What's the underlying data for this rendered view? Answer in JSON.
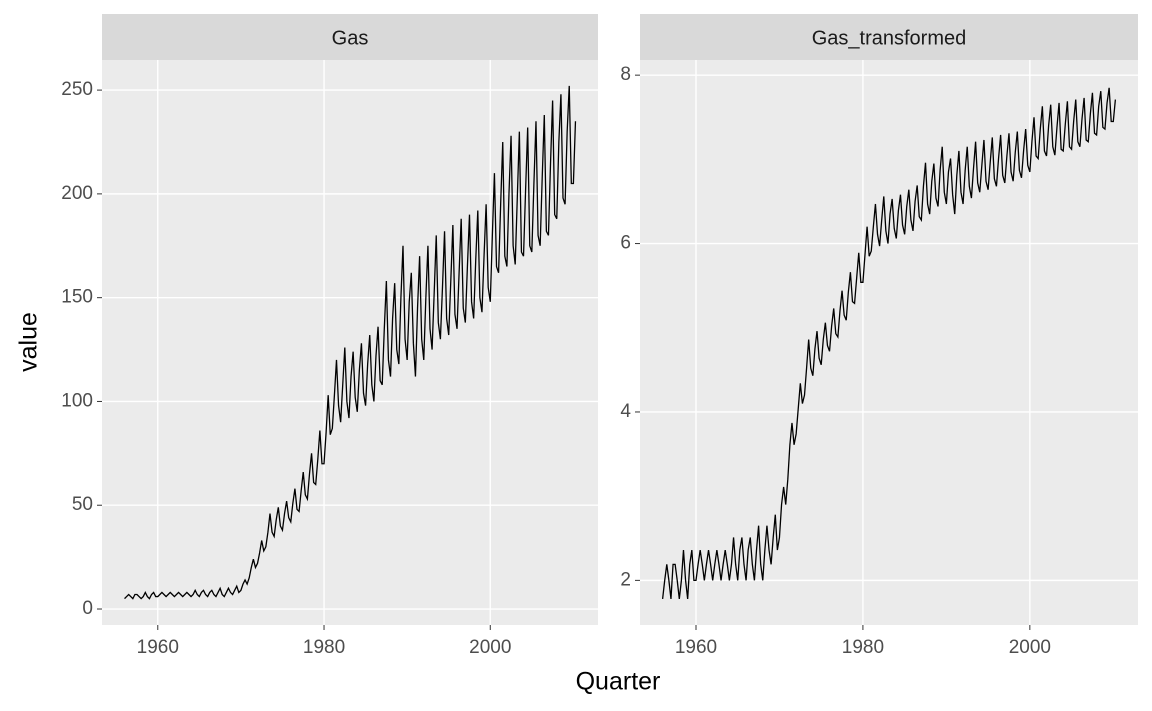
{
  "chart_data": {
    "type": "line",
    "x_label": "Quarter",
    "y_label": "value",
    "xlim": [
      1953.29,
      2012.96
    ],
    "xticks": [
      1960,
      1980,
      2000
    ],
    "grid": true,
    "color": "#000000",
    "x": [
      1956,
      1956.25,
      1956.5,
      1956.75,
      1957,
      1957.25,
      1957.5,
      1957.75,
      1958,
      1958.25,
      1958.5,
      1958.75,
      1959,
      1959.25,
      1959.5,
      1959.75,
      1960,
      1960.25,
      1960.5,
      1960.75,
      1961,
      1961.25,
      1961.5,
      1961.75,
      1962,
      1962.25,
      1962.5,
      1962.75,
      1963,
      1963.25,
      1963.5,
      1963.75,
      1964,
      1964.25,
      1964.5,
      1964.75,
      1965,
      1965.25,
      1965.5,
      1965.75,
      1966,
      1966.25,
      1966.5,
      1966.75,
      1967,
      1967.25,
      1967.5,
      1967.75,
      1968,
      1968.25,
      1968.5,
      1968.75,
      1969,
      1969.25,
      1969.5,
      1969.75,
      1970,
      1970.25,
      1970.5,
      1970.75,
      1971,
      1971.25,
      1971.5,
      1971.75,
      1972,
      1972.25,
      1972.5,
      1972.75,
      1973,
      1973.25,
      1973.5,
      1973.75,
      1974,
      1974.25,
      1974.5,
      1974.75,
      1975,
      1975.25,
      1975.5,
      1975.75,
      1976,
      1976.25,
      1976.5,
      1976.75,
      1977,
      1977.25,
      1977.5,
      1977.75,
      1978,
      1978.25,
      1978.5,
      1978.75,
      1979,
      1979.25,
      1979.5,
      1979.75,
      1980,
      1980.25,
      1980.5,
      1980.75,
      1981,
      1981.25,
      1981.5,
      1981.75,
      1982,
      1982.25,
      1982.5,
      1982.75,
      1983,
      1983.25,
      1983.5,
      1983.75,
      1984,
      1984.25,
      1984.5,
      1984.75,
      1985,
      1985.25,
      1985.5,
      1985.75,
      1986,
      1986.25,
      1986.5,
      1986.75,
      1987,
      1987.25,
      1987.5,
      1987.75,
      1988,
      1988.25,
      1988.5,
      1988.75,
      1989,
      1989.25,
      1989.5,
      1989.75,
      1990,
      1990.25,
      1990.5,
      1990.75,
      1991,
      1991.25,
      1991.5,
      1991.75,
      1992,
      1992.25,
      1992.5,
      1992.75,
      1993,
      1993.25,
      1993.5,
      1993.75,
      1994,
      1994.25,
      1994.5,
      1994.75,
      1995,
      1995.25,
      1995.5,
      1995.75,
      1996,
      1996.25,
      1996.5,
      1996.75,
      1997,
      1997.25,
      1997.5,
      1997.75,
      1998,
      1998.25,
      1998.5,
      1998.75,
      1999,
      1999.25,
      1999.5,
      1999.75,
      2000,
      2000.25,
      2000.5,
      2000.75,
      2001,
      2001.25,
      2001.5,
      2001.75,
      2002,
      2002.25,
      2002.5,
      2002.75,
      2003,
      2003.25,
      2003.5,
      2003.75,
      2004,
      2004.25,
      2004.5,
      2004.75,
      2005,
      2005.25,
      2005.5,
      2005.75,
      2006,
      2006.25,
      2006.5,
      2006.75,
      2007,
      2007.25,
      2007.5,
      2007.75,
      2008,
      2008.25,
      2008.5,
      2008.75,
      2009,
      2009.25,
      2009.5,
      2009.75,
      2010,
      2010.25
    ],
    "series": [
      {
        "name": "Gas",
        "ylim": [
          -7.7,
          264.5
        ],
        "yticks": [
          0,
          50,
          100,
          150,
          200,
          250
        ],
        "values": [
          5,
          6,
          7,
          6,
          5,
          7,
          7,
          6,
          5,
          6,
          8,
          6,
          5,
          7,
          8,
          6,
          6,
          7,
          8,
          7,
          6,
          7,
          8,
          7,
          6,
          7,
          8,
          7,
          6,
          7,
          8,
          7,
          6,
          7,
          9,
          7,
          6,
          8,
          9,
          7,
          6,
          8,
          9,
          7,
          6,
          8,
          10,
          7,
          6,
          8,
          10,
          8,
          7,
          9,
          11,
          8,
          9,
          12,
          14,
          12,
          15,
          20,
          24,
          20,
          22,
          27,
          33,
          28,
          30,
          37,
          46,
          37,
          35,
          43,
          49,
          40,
          38,
          46,
          52,
          44,
          42,
          51,
          58,
          48,
          47,
          57,
          66,
          55,
          53,
          65,
          75,
          61,
          60,
          72,
          86,
          70,
          70,
          85,
          103,
          84,
          87,
          103,
          120,
          98,
          90,
          108,
          126,
          100,
          92,
          112,
          124,
          102,
          95,
          115,
          128,
          104,
          98,
          118,
          132,
          108,
          100,
          122,
          136,
          110,
          108,
          135,
          158,
          120,
          112,
          140,
          157,
          125,
          118,
          150,
          175,
          130,
          120,
          148,
          162,
          128,
          112,
          145,
          170,
          130,
          120,
          150,
          175,
          135,
          125,
          152,
          180,
          138,
          130,
          155,
          182,
          140,
          132,
          158,
          185,
          142,
          135,
          162,
          188,
          145,
          138,
          165,
          190,
          148,
          140,
          168,
          192,
          150,
          143,
          170,
          195,
          155,
          148,
          180,
          210,
          165,
          162,
          195,
          225,
          170,
          165,
          200,
          228,
          175,
          166,
          198,
          230,
          172,
          170,
          202,
          232,
          175,
          172,
          205,
          235,
          180,
          175,
          208,
          238,
          182,
          180,
          215,
          245,
          190,
          188,
          225,
          248,
          198,
          195,
          230,
          252,
          205,
          205,
          235
        ]
      },
      {
        "name": "Gas_transformed",
        "ylim": [
          1.47,
          8.18
        ],
        "yticks": [
          2,
          4,
          6,
          8
        ],
        "values": [
          1.78,
          2.0,
          2.19,
          2.0,
          1.78,
          2.19,
          2.19,
          2.0,
          1.78,
          2.0,
          2.36,
          2.0,
          1.78,
          2.19,
          2.36,
          2.0,
          2.0,
          2.19,
          2.36,
          2.19,
          2.0,
          2.19,
          2.36,
          2.19,
          2.0,
          2.19,
          2.36,
          2.19,
          2.0,
          2.19,
          2.36,
          2.19,
          2.0,
          2.19,
          2.51,
          2.19,
          2.0,
          2.36,
          2.51,
          2.19,
          2.0,
          2.36,
          2.51,
          2.19,
          2.0,
          2.36,
          2.65,
          2.19,
          2.0,
          2.36,
          2.65,
          2.36,
          2.19,
          2.51,
          2.78,
          2.36,
          2.51,
          2.9,
          3.11,
          2.9,
          3.2,
          3.61,
          3.87,
          3.61,
          3.74,
          4.04,
          4.34,
          4.1,
          4.2,
          4.52,
          4.86,
          4.52,
          4.43,
          4.75,
          4.96,
          4.64,
          4.56,
          4.86,
          5.06,
          4.79,
          4.72,
          5.02,
          5.23,
          4.93,
          4.89,
          5.2,
          5.44,
          5.15,
          5.09,
          5.42,
          5.66,
          5.31,
          5.29,
          5.59,
          5.89,
          5.54,
          5.54,
          5.87,
          6.2,
          5.85,
          5.91,
          6.2,
          6.47,
          6.11,
          5.97,
          6.28,
          6.56,
          6.15,
          6.0,
          6.35,
          6.53,
          6.18,
          6.06,
          6.39,
          6.58,
          6.22,
          6.11,
          6.44,
          6.64,
          6.28,
          6.15,
          6.5,
          6.69,
          6.32,
          6.28,
          6.68,
          6.96,
          6.47,
          6.35,
          6.74,
          6.95,
          6.54,
          6.44,
          6.87,
          7.15,
          6.61,
          6.47,
          6.85,
          7.01,
          6.58,
          6.35,
          6.81,
          7.1,
          6.61,
          6.47,
          6.87,
          7.15,
          6.68,
          6.54,
          6.89,
          7.21,
          6.72,
          6.61,
          6.93,
          7.23,
          6.74,
          6.64,
          6.96,
          7.26,
          6.77,
          6.68,
          7.01,
          7.29,
          6.81,
          6.72,
          7.04,
          7.31,
          6.85,
          6.74,
          7.08,
          7.33,
          6.87,
          6.78,
          7.1,
          7.36,
          6.93,
          6.85,
          7.21,
          7.5,
          7.04,
          7.01,
          7.36,
          7.63,
          7.1,
          7.04,
          7.4,
          7.65,
          7.15,
          7.05,
          7.38,
          7.67,
          7.12,
          7.1,
          7.42,
          7.69,
          7.15,
          7.12,
          7.45,
          7.71,
          7.21,
          7.15,
          7.48,
          7.73,
          7.23,
          7.21,
          7.54,
          7.79,
          7.31,
          7.29,
          7.63,
          7.81,
          7.38,
          7.36,
          7.67,
          7.85,
          7.45,
          7.45,
          7.71
        ]
      }
    ]
  }
}
